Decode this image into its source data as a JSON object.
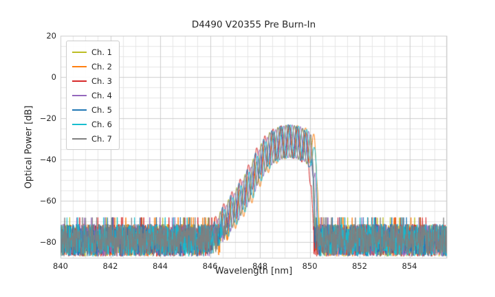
{
  "chart_data": {
    "type": "line",
    "title": "D4490 V20355 Pre Burn-In",
    "xlabel": "Wavelength [nm]",
    "ylabel": "Optical Power [dB]",
    "xlim": [
      840,
      855.5
    ],
    "ylim": [
      -88,
      20
    ],
    "x_ticks": [
      840,
      842,
      844,
      846,
      848,
      850,
      852,
      854
    ],
    "y_ticks": [
      20,
      0,
      -20,
      -40,
      -60,
      -80
    ],
    "grid": {
      "on": true,
      "minor_x_step_nm": 0.5,
      "minor_y_step_db": 5,
      "major_color": "#cccccc",
      "minor_color": "#e6e6e6",
      "frame_color": "#cccccc"
    },
    "legend_position": "upper-left",
    "series": [
      {
        "name": "Ch. 1",
        "color": "#bcbd22",
        "dx_nm": -0.04,
        "phase": 0.0,
        "seed": 101
      },
      {
        "name": "Ch. 2",
        "color": "#ff7f0e",
        "dx_nm": 0.14,
        "phase": 1.1,
        "seed": 202
      },
      {
        "name": "Ch. 3",
        "color": "#d62728",
        "dx_nm": -0.12,
        "phase": 2.2,
        "seed": 303
      },
      {
        "name": "Ch. 4",
        "color": "#9467bd",
        "dx_nm": 0.03,
        "phase": 3.0,
        "seed": 404
      },
      {
        "name": "Ch. 5",
        "color": "#1f77b4",
        "dx_nm": -0.07,
        "phase": 4.1,
        "seed": 505
      },
      {
        "name": "Ch. 6",
        "color": "#17becf",
        "dx_nm": 0.08,
        "phase": 5.3,
        "seed": 606
      },
      {
        "name": "Ch. 7",
        "color": "#7f7f7f",
        "dx_nm": 0.0,
        "phase": 0.7,
        "seed": 707
      }
    ],
    "spectrum": {
      "description": "ASE noise floor ~-71..-87 dB across 840-855 nm; multimode laser peak 846.3-850.2 nm, top ~-23 dB, longitudinal-mode ripple; sharp cutoff at ~850.2 nm",
      "envelope_points": [
        [
          846.0,
          -76
        ],
        [
          846.4,
          -66
        ],
        [
          846.8,
          -59
        ],
        [
          847.2,
          -52
        ],
        [
          847.6,
          -44
        ],
        [
          848.0,
          -34
        ],
        [
          848.4,
          -27
        ],
        [
          848.8,
          -24
        ],
        [
          849.2,
          -23
        ],
        [
          849.6,
          -24
        ],
        [
          849.9,
          -26
        ],
        [
          850.05,
          -28
        ],
        [
          850.18,
          -40
        ],
        [
          850.28,
          -77
        ]
      ],
      "mode_spacing_nm": 0.33,
      "ripple_depth_db": 16,
      "noise_top_db": -71,
      "noise_spread_db": 16,
      "x_step_nm": 0.01
    }
  }
}
